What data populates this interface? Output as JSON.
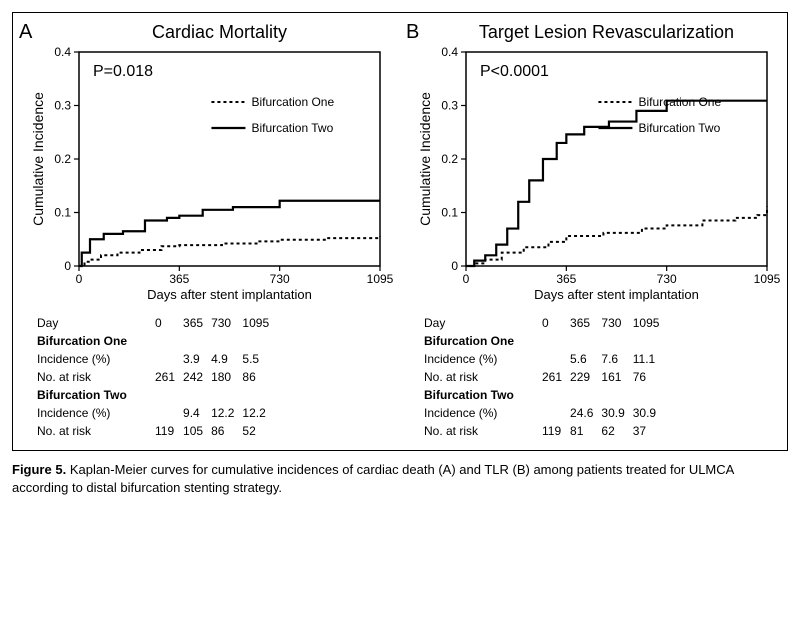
{
  "figure_label": "Figure 5.",
  "caption_text": "Kaplan-Meier curves for cumulative incidences of cardiac death (A) and TLR (B) among patients treated for ULMCA according to distal bifurcation stenting strategy.",
  "panels": {
    "A": {
      "letter": "A",
      "title": "Cardiac Mortality",
      "pvalue": "P=0.018",
      "chart": {
        "type": "line-step",
        "xlabel": "Days after stent implantation",
        "ylabel": "Cumulative Incidence",
        "xlim": [
          0,
          1095
        ],
        "ylim": [
          0,
          0.4
        ],
        "xticks": [
          0,
          365,
          730,
          1095
        ],
        "yticks": [
          0,
          0.1,
          0.2,
          0.3,
          0.4
        ],
        "axis_color": "#000000",
        "background_color": "#ffffff",
        "title_fontsize": 18,
        "label_fontsize": 13,
        "tick_fontsize": 12,
        "pvalue_fontsize": 16,
        "legend_fontsize": 12,
        "legend_position": "upper-right-inside",
        "series": [
          {
            "name": "Bifurcation One",
            "color": "#000000",
            "line_width": 2,
            "dash": "3,3",
            "step": true,
            "points": [
              [
                0,
                0
              ],
              [
                20,
                0.008
              ],
              [
                40,
                0.012
              ],
              [
                80,
                0.02
              ],
              [
                140,
                0.025
              ],
              [
                220,
                0.03
              ],
              [
                300,
                0.037
              ],
              [
                365,
                0.039
              ],
              [
                520,
                0.042
              ],
              [
                650,
                0.046
              ],
              [
                730,
                0.049
              ],
              [
                900,
                0.052
              ],
              [
                1095,
                0.055
              ]
            ]
          },
          {
            "name": "Bifurcation Two",
            "color": "#000000",
            "line_width": 2.2,
            "dash": "none",
            "step": true,
            "points": [
              [
                0,
                0
              ],
              [
                10,
                0.025
              ],
              [
                40,
                0.05
              ],
              [
                90,
                0.06
              ],
              [
                160,
                0.065
              ],
              [
                240,
                0.085
              ],
              [
                320,
                0.09
              ],
              [
                365,
                0.094
              ],
              [
                450,
                0.105
              ],
              [
                560,
                0.11
              ],
              [
                730,
                0.122
              ],
              [
                1095,
                0.122
              ]
            ]
          }
        ]
      },
      "table": {
        "day_label": "Day",
        "days": [
          "0",
          "365",
          "730",
          "1095"
        ],
        "groups": [
          {
            "name": "Bifurcation One",
            "rows": [
              {
                "label": "Incidence (%)",
                "values": [
                  "",
                  "3.9",
                  "4.9",
                  "5.5"
                ]
              },
              {
                "label": "No. at risk",
                "values": [
                  "261",
                  "242",
                  "180",
                  "86"
                ]
              }
            ]
          },
          {
            "name": "Bifurcation Two",
            "rows": [
              {
                "label": "Incidence (%)",
                "values": [
                  "",
                  "9.4",
                  "12.2",
                  "12.2"
                ]
              },
              {
                "label": "No. at risk",
                "values": [
                  "119",
                  "105",
                  "86",
                  "52"
                ]
              }
            ]
          }
        ]
      }
    },
    "B": {
      "letter": "B",
      "title": "Target Lesion Revascularization",
      "pvalue": "P<0.0001",
      "chart": {
        "type": "line-step",
        "xlabel": "Days after stent implantation",
        "ylabel": "Cumulative Incidence",
        "xlim": [
          0,
          1095
        ],
        "ylim": [
          0,
          0.4
        ],
        "xticks": [
          0,
          365,
          730,
          1095
        ],
        "yticks": [
          0,
          0.1,
          0.2,
          0.3,
          0.4
        ],
        "axis_color": "#000000",
        "background_color": "#ffffff",
        "title_fontsize": 18,
        "label_fontsize": 13,
        "tick_fontsize": 12,
        "pvalue_fontsize": 16,
        "legend_fontsize": 12,
        "legend_position": "upper-right-inside",
        "series": [
          {
            "name": "Bifurcation One",
            "color": "#000000",
            "line_width": 2,
            "dash": "3,3",
            "step": true,
            "points": [
              [
                0,
                0
              ],
              [
                30,
                0.005
              ],
              [
                70,
                0.012
              ],
              [
                130,
                0.025
              ],
              [
                210,
                0.035
              ],
              [
                300,
                0.045
              ],
              [
                365,
                0.056
              ],
              [
                500,
                0.062
              ],
              [
                640,
                0.07
              ],
              [
                730,
                0.076
              ],
              [
                860,
                0.085
              ],
              [
                980,
                0.09
              ],
              [
                1060,
                0.095
              ],
              [
                1095,
                0.111
              ]
            ]
          },
          {
            "name": "Bifurcation Two",
            "color": "#000000",
            "line_width": 2.2,
            "dash": "none",
            "step": true,
            "points": [
              [
                0,
                0
              ],
              [
                30,
                0.01
              ],
              [
                70,
                0.02
              ],
              [
                110,
                0.04
              ],
              [
                150,
                0.07
              ],
              [
                190,
                0.12
              ],
              [
                230,
                0.16
              ],
              [
                280,
                0.2
              ],
              [
                330,
                0.23
              ],
              [
                365,
                0.246
              ],
              [
                430,
                0.26
              ],
              [
                520,
                0.27
              ],
              [
                620,
                0.29
              ],
              [
                730,
                0.309
              ],
              [
                1095,
                0.309
              ]
            ]
          }
        ]
      },
      "table": {
        "day_label": "Day",
        "days": [
          "0",
          "365",
          "730",
          "1095"
        ],
        "groups": [
          {
            "name": "Bifurcation One",
            "rows": [
              {
                "label": "Incidence (%)",
                "values": [
                  "",
                  "5.6",
                  "7.6",
                  "11.1"
                ]
              },
              {
                "label": "No. at risk",
                "values": [
                  "261",
                  "229",
                  "161",
                  "76"
                ]
              }
            ]
          },
          {
            "name": "Bifurcation Two",
            "rows": [
              {
                "label": "Incidence (%)",
                "values": [
                  "",
                  "24.6",
                  "30.9",
                  "30.9"
                ]
              },
              {
                "label": "No. at risk",
                "values": [
                  "119",
                  "81",
                  "62",
                  "37"
                ]
              }
            ]
          }
        ]
      }
    }
  }
}
